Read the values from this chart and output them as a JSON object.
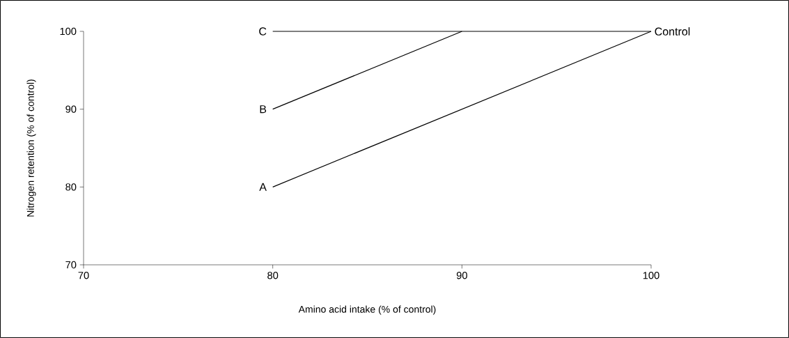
{
  "chart_data": {
    "type": "line",
    "xlabel": "Amino acid intake (% of control)",
    "ylabel": "Nitrogen retention (% of control)",
    "xlim": [
      70,
      100
    ],
    "ylim": [
      70,
      100
    ],
    "xticks": [
      70,
      80,
      90,
      100
    ],
    "yticks": [
      70,
      80,
      90,
      100
    ],
    "grid": false,
    "legend": false,
    "marker": "none",
    "line_style": "solid",
    "series": [
      {
        "name": "A",
        "color": "#000000",
        "x": [
          80,
          100
        ],
        "values": [
          80,
          100
        ]
      },
      {
        "name": "B",
        "color": "#000000",
        "x": [
          80,
          90
        ],
        "values": [
          90,
          100
        ]
      },
      {
        "name": "C",
        "color": "#000000",
        "x": [
          80,
          100
        ],
        "values": [
          100,
          100
        ]
      }
    ],
    "annotations": [
      {
        "text": "Control",
        "x": 100,
        "y": 100
      }
    ]
  }
}
